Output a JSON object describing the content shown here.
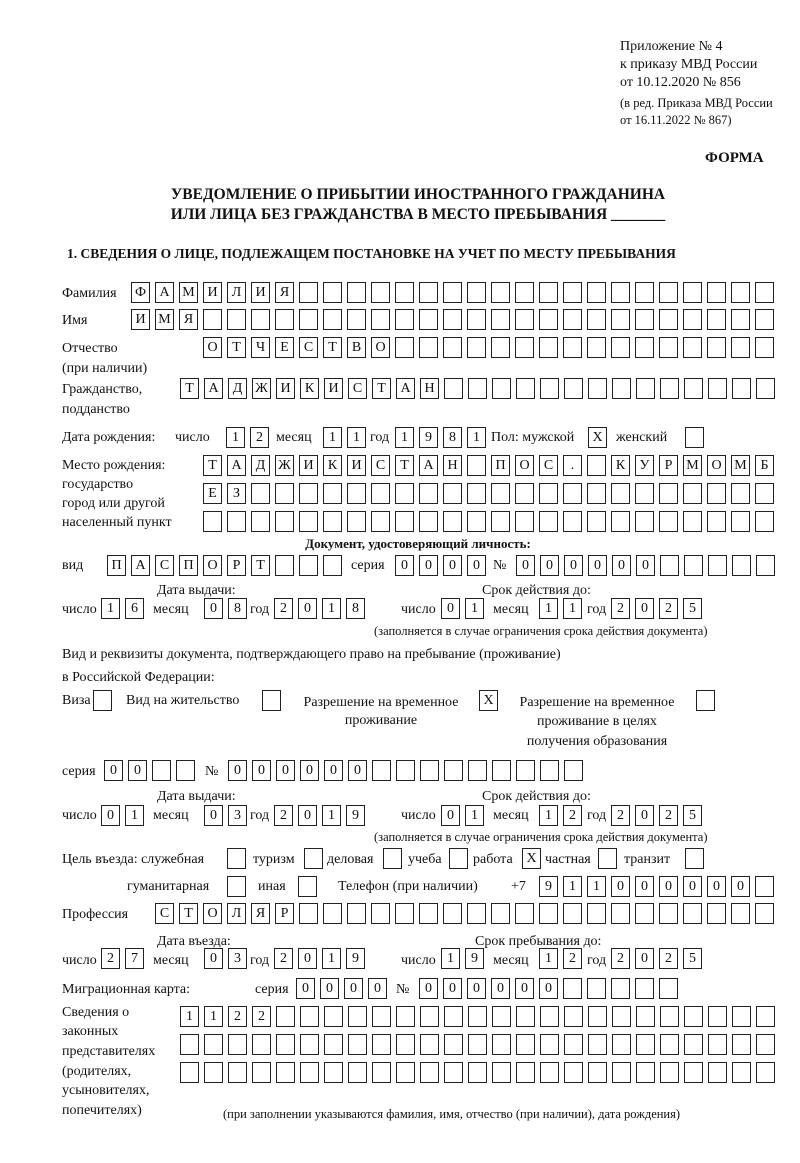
{
  "header": {
    "appendix": "Приложение № 4",
    "order": "к приказу МВД России",
    "order_date": "от 10.12.2020 № 856",
    "edition_1": "(в ред. Приказа МВД России",
    "edition_2": "от 16.11.2022 № 867)",
    "form_label": "ФОРМА"
  },
  "title": {
    "line1": "УВЕДОМЛЕНИЕ О ПРИБЫТИИ ИНОСТРАННОГО ГРАЖДАНИНА",
    "line2": "ИЛИ ЛИЦА БЕЗ ГРАЖДАНСТВА В МЕСТО ПРЕБЫВАНИЯ _______"
  },
  "section1": {
    "heading": "1. СВЕДЕНИЯ О ЛИЦЕ, ПОДЛЕЖАЩЕМ ПОСТАНОВКЕ НА УЧЕТ ПО МЕСТУ ПРЕБЫВАНИЯ",
    "surname": {
      "label": "Фамилия",
      "value": [
        "Ф",
        "А",
        "М",
        "И",
        "Л",
        "И",
        "Я",
        "",
        "",
        "",
        "",
        "",
        "",
        "",
        "",
        "",
        "",
        "",
        "",
        "",
        "",
        "",
        "",
        "",
        "",
        "",
        ""
      ]
    },
    "name": {
      "label": "Имя",
      "value": [
        "И",
        "М",
        "Я",
        "",
        "",
        "",
        "",
        "",
        "",
        "",
        "",
        "",
        "",
        "",
        "",
        "",
        "",
        "",
        "",
        "",
        "",
        "",
        "",
        "",
        "",
        "",
        ""
      ]
    },
    "patronymic": {
      "label": "Отчество",
      "label2": "(при наличии)",
      "value": [
        "О",
        "Т",
        "Ч",
        "Е",
        "С",
        "Т",
        "В",
        "О",
        "",
        "",
        "",
        "",
        "",
        "",
        "",
        "",
        "",
        "",
        "",
        "",
        "",
        "",
        "",
        ""
      ]
    },
    "citizenship": {
      "label": "Гражданство,",
      "label2": "подданство",
      "value": [
        "Т",
        "А",
        "Д",
        "Ж",
        "И",
        "К",
        "И",
        "С",
        "Т",
        "А",
        "Н",
        "",
        "",
        "",
        "",
        "",
        "",
        "",
        "",
        "",
        "",
        "",
        "",
        "",
        ""
      ]
    },
    "birth_date": {
      "label": "Дата рождения:",
      "day_label": "число",
      "month_label": "месяц",
      "year_label": "год",
      "day": [
        "1",
        "2"
      ],
      "month": [
        "1",
        "1"
      ],
      "year": [
        "1",
        "9",
        "8",
        "1"
      ]
    },
    "sex": {
      "label": "Пол: мужской",
      "male": [
        "X"
      ],
      "female_label": "женский",
      "female": [
        ""
      ]
    },
    "birth_place": {
      "label1": "Место рождения:",
      "label2": "государство",
      "label3": "город или другой",
      "label4": "населенный пункт",
      "row1": [
        "Т",
        "А",
        "Д",
        "Ж",
        "И",
        "К",
        "И",
        "С",
        "Т",
        "А",
        "Н",
        "",
        "П",
        "О",
        "С",
        ".",
        "",
        "К",
        "У",
        "Р",
        "М",
        "О",
        "М",
        "Б"
      ],
      "row2": [
        "Е",
        "З",
        "",
        "",
        "",
        "",
        "",
        "",
        "",
        "",
        "",
        "",
        "",
        "",
        "",
        "",
        "",
        "",
        "",
        "",
        "",
        "",
        "",
        ""
      ],
      "row3": [
        "",
        "",
        "",
        "",
        "",
        "",
        "",
        "",
        "",
        "",
        "",
        "",
        "",
        "",
        "",
        "",
        "",
        "",
        "",
        "",
        "",
        "",
        "",
        ""
      ]
    },
    "id_document": {
      "heading": "Документ, удостоверяющий личность:",
      "type_label": "вид",
      "type": [
        "П",
        "А",
        "С",
        "П",
        "О",
        "Р",
        "Т",
        "",
        "",
        ""
      ],
      "series_label": "серия",
      "series": [
        "0",
        "0",
        "0",
        "0"
      ],
      "number_label": "№",
      "number": [
        "0",
        "0",
        "0",
        "0",
        "0",
        "0",
        "",
        "",
        "",
        "",
        ""
      ],
      "issue_label": "Дата выдачи:",
      "valid_label": "Срок действия до:",
      "day_label": "число",
      "month_label": "месяц",
      "year_label": "год",
      "issue_day": [
        "1",
        "6"
      ],
      "issue_month": [
        "0",
        "8"
      ],
      "issue_year": [
        "2",
        "0",
        "1",
        "8"
      ],
      "valid_day": [
        "0",
        "1"
      ],
      "valid_month": [
        "1",
        "1"
      ],
      "valid_year": [
        "2",
        "0",
        "2",
        "5"
      ],
      "note": "(заполняется в случае ограничения срока действия документа)"
    },
    "stay_document": {
      "heading1": "Вид и реквизиты документа, подтверждающего право на пребывание (проживание)",
      "heading2": "в Российской Федерации:",
      "visa_label": "Виза",
      "visa": [
        ""
      ],
      "residence_label": "Вид на жительство",
      "residence": [
        ""
      ],
      "temp_label1": "Разрешение на временное",
      "temp_label2": "проживание",
      "temp": [
        "X"
      ],
      "edu_label1": "Разрешение на временное",
      "edu_label2": "проживание в целях",
      "edu_label3": "получения образования",
      "edu": [
        ""
      ],
      "series_label": "серия",
      "series": [
        "0",
        "0",
        "",
        ""
      ],
      "number_label": "№",
      "number": [
        "0",
        "0",
        "0",
        "0",
        "0",
        "0",
        "",
        "",
        "",
        "",
        "",
        "",
        "",
        "",
        ""
      ],
      "issue_label": "Дата выдачи:",
      "valid_label": "Срок действия до:",
      "day_label": "число",
      "month_label": "месяц",
      "year_label": "год",
      "issue_day": [
        "0",
        "1"
      ],
      "issue_month": [
        "0",
        "3"
      ],
      "issue_year": [
        "2",
        "0",
        "1",
        "9"
      ],
      "valid_day": [
        "0",
        "1"
      ],
      "valid_month": [
        "1",
        "2"
      ],
      "valid_year": [
        "2",
        "0",
        "2",
        "5"
      ],
      "note": "(заполняется в случае ограничения срока действия документа)"
    },
    "purpose": {
      "label": "Цель въезда: служебная",
      "official": [
        ""
      ],
      "tourism_label": "туризм",
      "tourism": [
        ""
      ],
      "business_label": "деловая",
      "business": [
        ""
      ],
      "study_label": "учеба",
      "study": [
        ""
      ],
      "work_label": "работа",
      "work": [
        "X"
      ],
      "private_label": "частная",
      "private": [
        ""
      ],
      "transit_label": "транзит",
      "transit": [
        ""
      ],
      "humanitarian_label": "гуманитарная",
      "humanitarian": [
        ""
      ],
      "other_label": "иная",
      "other": [
        ""
      ]
    },
    "phone": {
      "label": "Телефон (при наличии)",
      "prefix": "+7",
      "value": [
        "9",
        "1",
        "1",
        "0",
        "0",
        "0",
        "0",
        "0",
        "0",
        ""
      ]
    },
    "profession": {
      "label": "Профессия",
      "value": [
        "С",
        "Т",
        "О",
        "Л",
        "Я",
        "Р",
        "",
        "",
        "",
        "",
        "",
        "",
        "",
        "",
        "",
        "",
        "",
        "",
        "",
        "",
        "",
        "",
        "",
        "",
        "",
        ""
      ]
    },
    "entry": {
      "entry_label": "Дата въезда:",
      "stay_label": "Срок пребывания до:",
      "day_label": "число",
      "month_label": "месяц",
      "year_label": "год",
      "entry_day": [
        "2",
        "7"
      ],
      "entry_month": [
        "0",
        "3"
      ],
      "entry_year": [
        "2",
        "0",
        "1",
        "9"
      ],
      "stay_day": [
        "1",
        "9"
      ],
      "stay_month": [
        "1",
        "2"
      ],
      "stay_year": [
        "2",
        "0",
        "2",
        "5"
      ]
    },
    "migration_card": {
      "label": "Миграционная карта:",
      "series_label": "серия",
      "series": [
        "0",
        "0",
        "0",
        "0"
      ],
      "number_label": "№",
      "number": [
        "0",
        "0",
        "0",
        "0",
        "0",
        "0",
        "",
        "",
        "",
        "",
        ""
      ]
    },
    "representatives": {
      "label1": "Сведения о",
      "label2": "законных",
      "label3": "представителях",
      "label4": "(родителях,",
      "label5": "усыновителях,",
      "label6": "попечителях)",
      "row1": [
        "1",
        "1",
        "2",
        "2",
        "",
        "",
        "",
        "",
        "",
        "",
        "",
        "",
        "",
        "",
        "",
        "",
        "",
        "",
        "",
        "",
        "",
        "",
        "",
        "",
        ""
      ],
      "row2": [
        "",
        "",
        "",
        "",
        "",
        "",
        "",
        "",
        "",
        "",
        "",
        "",
        "",
        "",
        "",
        "",
        "",
        "",
        "",
        "",
        "",
        "",
        "",
        "",
        ""
      ],
      "row3": [
        "",
        "",
        "",
        "",
        "",
        "",
        "",
        "",
        "",
        "",
        "",
        "",
        "",
        "",
        "",
        "",
        "",
        "",
        "",
        "",
        "",
        "",
        "",
        "",
        ""
      ],
      "note": "(при заполнении указываются фамилия, имя, отчество (при наличии), дата рождения)"
    }
  }
}
